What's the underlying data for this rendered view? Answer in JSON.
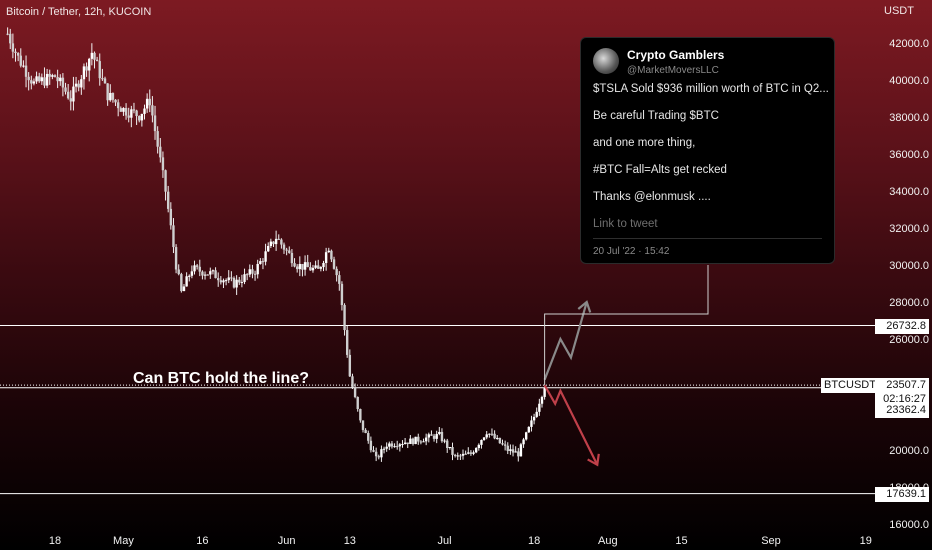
{
  "header": {
    "title": "Bitcoin / Tether, 12h, KUCOIN",
    "unit": "USDT"
  },
  "annotation": "Can BTC hold the line?",
  "price_tags": {
    "level_high": "26732.8",
    "symbol": "BTCUSDT",
    "last_price": "23507.7",
    "countdown": "02:16:27",
    "level_mid": "23362.4",
    "level_low": "17639.1"
  },
  "tweet": {
    "name": "Crypto Gamblers",
    "handle": "@MarketMoversLLC",
    "lines": [
      "$TSLA Sold $936 million worth of BTC in Q2...",
      "Be careful Trading $BTC",
      "and one more thing,",
      "#BTC Fall=Alts get recked",
      "Thanks @elonmusk ...."
    ],
    "link": "Link to tweet",
    "date": "20 Jul '22 · 15:42"
  },
  "colors": {
    "candle": "#f2f2f2",
    "level_line": "#ffffff",
    "arrow_up": "#8a8a8a",
    "arrow_down": "#c0404a"
  },
  "chart_data": {
    "type": "candlestick",
    "title": "Bitcoin / Tether, 12h, KUCOIN",
    "ylabel": "USDT",
    "ylim": [
      16000,
      43000
    ],
    "y_ticks": [
      16000,
      18000,
      20000,
      22000,
      24000,
      26000,
      28000,
      30000,
      32000,
      34000,
      36000,
      38000,
      40000,
      42000
    ],
    "y_tick_labels": [
      "16000.0",
      "18000.0",
      "20000.0",
      "",
      "",
      "26000.0",
      "28000.0",
      "30000.0",
      "32000.0",
      "34000.0",
      "36000.0",
      "38000.0",
      "40000.0",
      "42000.0"
    ],
    "x_tick_labels": [
      "18",
      "May",
      "16",
      "Jun",
      "13",
      "Jul",
      "18",
      "Aug",
      "15",
      "Sep",
      "19"
    ],
    "x_ticks_dates": [
      "2022-04-18",
      "2022-05-01",
      "2022-05-16",
      "2022-06-01",
      "2022-06-13",
      "2022-07-01",
      "2022-07-18",
      "2022-08-01",
      "2022-08-15",
      "2022-09-01",
      "2022-09-19"
    ],
    "price_path": [
      {
        "date": "2022-04-09",
        "price": 42500
      },
      {
        "date": "2022-04-11",
        "price": 41200
      },
      {
        "date": "2022-04-14",
        "price": 39800
      },
      {
        "date": "2022-04-18",
        "price": 40200
      },
      {
        "date": "2022-04-21",
        "price": 39000
      },
      {
        "date": "2022-04-25",
        "price": 41500
      },
      {
        "date": "2022-04-28",
        "price": 39200
      },
      {
        "date": "2022-05-01",
        "price": 38400
      },
      {
        "date": "2022-05-04",
        "price": 38100
      },
      {
        "date": "2022-05-06",
        "price": 38900
      },
      {
        "date": "2022-05-09",
        "price": 34000
      },
      {
        "date": "2022-05-11",
        "price": 30000
      },
      {
        "date": "2022-05-12",
        "price": 28500
      },
      {
        "date": "2022-05-14",
        "price": 29800
      },
      {
        "date": "2022-05-18",
        "price": 29500
      },
      {
        "date": "2022-05-22",
        "price": 29000
      },
      {
        "date": "2022-05-26",
        "price": 29700
      },
      {
        "date": "2022-05-30",
        "price": 31500
      },
      {
        "date": "2022-06-03",
        "price": 30000
      },
      {
        "date": "2022-06-07",
        "price": 29700
      },
      {
        "date": "2022-06-09",
        "price": 31000
      },
      {
        "date": "2022-06-11",
        "price": 29000
      },
      {
        "date": "2022-06-13",
        "price": 24000
      },
      {
        "date": "2022-06-15",
        "price": 21500
      },
      {
        "date": "2022-06-18",
        "price": 19500
      },
      {
        "date": "2022-06-20",
        "price": 20300
      },
      {
        "date": "2022-06-25",
        "price": 20500
      },
      {
        "date": "2022-06-30",
        "price": 20800
      },
      {
        "date": "2022-07-03",
        "price": 19600
      },
      {
        "date": "2022-07-06",
        "price": 19800
      },
      {
        "date": "2022-07-09",
        "price": 21000
      },
      {
        "date": "2022-07-13",
        "price": 20000
      },
      {
        "date": "2022-07-15",
        "price": 19800
      },
      {
        "date": "2022-07-18",
        "price": 21800
      },
      {
        "date": "2022-07-20",
        "price": 23500
      }
    ],
    "horizontal_levels": [
      26732.8,
      23362.4,
      17639.1
    ],
    "last_price": 23507.7,
    "scenarios": [
      {
        "direction": "up",
        "path": [
          {
            "date": "2022-07-20",
            "price": 23800
          },
          {
            "date": "2022-07-23",
            "price": 26000
          },
          {
            "date": "2022-07-25",
            "price": 25000
          },
          {
            "date": "2022-07-28",
            "price": 28000
          }
        ]
      },
      {
        "direction": "down",
        "path": [
          {
            "date": "2022-07-20",
            "price": 23500
          },
          {
            "date": "2022-07-22",
            "price": 22500
          },
          {
            "date": "2022-07-23",
            "price": 23200
          },
          {
            "date": "2022-07-30",
            "price": 19200
          }
        ]
      }
    ]
  }
}
